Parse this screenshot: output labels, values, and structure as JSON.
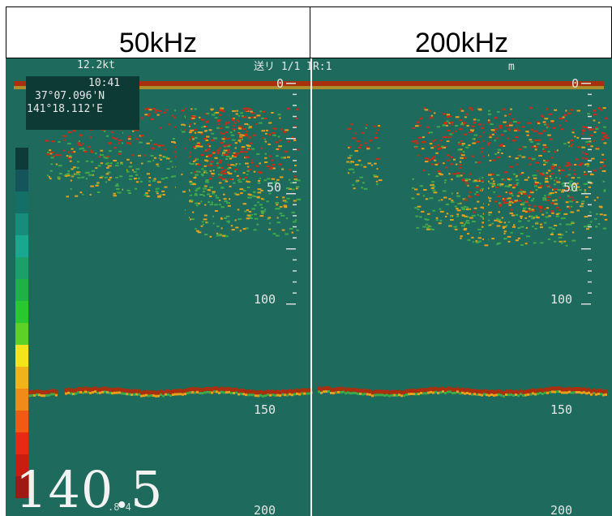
{
  "header": {
    "left_freq": "50kHz",
    "right_freq": "200kHz"
  },
  "status_bar": {
    "speed": "12.2kt",
    "center_text": "送リ 1/1 IR:1",
    "unit": "m"
  },
  "position": {
    "time": "10:41",
    "latitude": "37°07.096'N",
    "longitude": "141°18.112'E"
  },
  "readout": {
    "depth_value": "140.5",
    "sub_value": ".8  4"
  },
  "depth_scale": {
    "labels": [
      "0",
      "50",
      "100",
      "150",
      "200"
    ]
  },
  "colors": {
    "water": "#1e6a5c",
    "echo_strong": "#d42a12",
    "echo_mid": "#e8a018",
    "echo_weak": "#3ea84a",
    "seabed": "#a8300f"
  },
  "color_bar": [
    "#0d3b3a",
    "#14545a",
    "#127066",
    "#168c7a",
    "#18a890",
    "#1aa06a",
    "#1eb246",
    "#28c830",
    "#5cd228",
    "#f2e51a",
    "#f0b41a",
    "#f08a18",
    "#f05a14",
    "#e82a14",
    "#c81e12",
    "#9e1a12"
  ]
}
